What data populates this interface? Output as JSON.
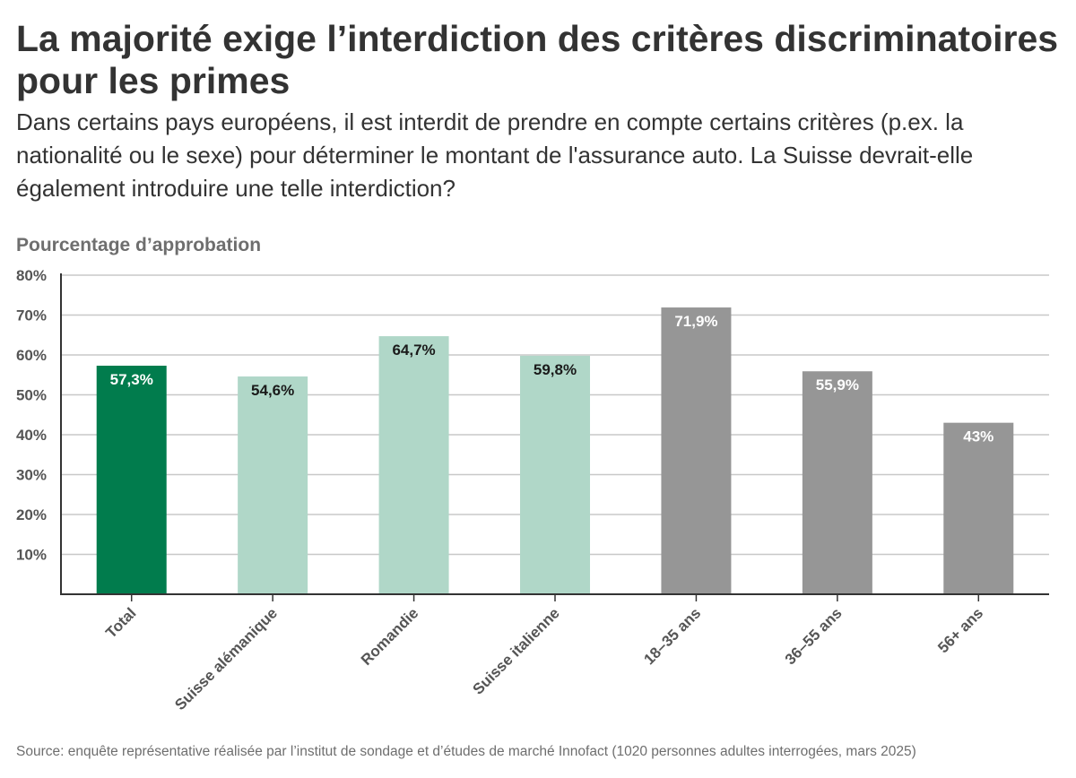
{
  "title": "La majorité exige l’interdiction des critères discriminatoires pour les primes",
  "subtitle": "Dans certains pays européens, il est interdit de prendre en compte certains critères (p.ex. la nationalité ou le sexe) pour déterminer le montant de l'assurance auto. La Suisse devrait-elle également introduire une telle interdiction?",
  "source": "Source: enquête représentative réalisée par l’institut de sondage et d’études de marché Innofact (1020 personnes adultes interrogées, mars 2025)",
  "chart_data": {
    "type": "bar",
    "ylabel": "Pourcentage d’approbation",
    "ylim": [
      0,
      80
    ],
    "yticks": [
      10,
      20,
      30,
      40,
      50,
      60,
      70,
      80
    ],
    "ytick_labels": [
      "10%",
      "20%",
      "30%",
      "40%",
      "50%",
      "60%",
      "70%",
      "80%"
    ],
    "grid": true,
    "categories": [
      "Total",
      "Suisse alémanique",
      "Romandie",
      "Suisse italienne",
      "18–35 ans",
      "36–55 ans",
      "56+ ans"
    ],
    "values": [
      57.3,
      54.6,
      64.7,
      59.8,
      71.9,
      55.9,
      43
    ],
    "value_labels": [
      "57,3%",
      "54,6%",
      "64,7%",
      "59,8%",
      "71,9%",
      "55,9%",
      "43%"
    ],
    "colors": [
      "#017c4d",
      "#b0d7c8",
      "#b0d7c8",
      "#b0d7c8",
      "#969696",
      "#969696",
      "#969696"
    ],
    "label_colors": [
      "#ffffff",
      "#1a1a1a",
      "#1a1a1a",
      "#1a1a1a",
      "#ffffff",
      "#ffffff",
      "#ffffff"
    ]
  }
}
